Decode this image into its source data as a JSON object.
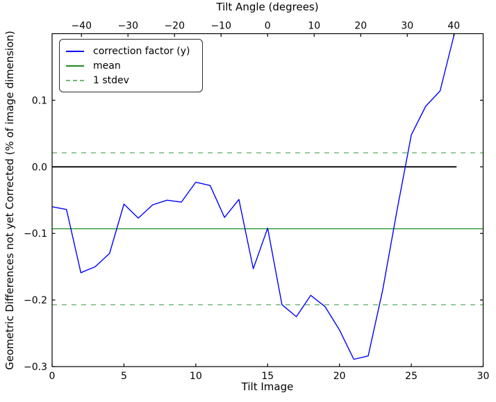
{
  "figure": {
    "background": "#ffffff"
  },
  "chart_data": {
    "type": "line",
    "top_axis": {
      "label": "Tilt Angle (degrees)",
      "tick_values": [
        -40,
        -30,
        -20,
        -10,
        0,
        10,
        20,
        30,
        40
      ],
      "tick_labels": [
        "−40",
        "−30",
        "−20",
        "−10",
        "0",
        "10",
        "20",
        "30",
        "40"
      ],
      "lim": [
        -46.3,
        46.3
      ]
    },
    "xlabel": "Tilt Image",
    "ylabel": "Geometric Differences not yet Corrected (% of image dimension)",
    "xlim": [
      0,
      30
    ],
    "ylim": [
      -0.3,
      0.2
    ],
    "xticks": {
      "values": [
        0,
        5,
        10,
        15,
        20,
        25,
        30
      ],
      "labels": [
        "0",
        "5",
        "10",
        "15",
        "20",
        "25",
        "30"
      ]
    },
    "yticks": {
      "values": [
        0.1,
        0.0,
        -0.1,
        -0.2,
        -0.3
      ],
      "labels": [
        "0.1",
        "0.0",
        "−0.1",
        "−0.2",
        "−0.3"
      ]
    },
    "grid": false,
    "series": [
      {
        "name": "correction factor (y)",
        "x": [
          0,
          1,
          2,
          3,
          4,
          5,
          6,
          7,
          8,
          9,
          10,
          11,
          12,
          13,
          14,
          15,
          16,
          17,
          18,
          19,
          20,
          21,
          22,
          23,
          24,
          25,
          26,
          27,
          28
        ],
        "values": [
          -0.06,
          -0.064,
          -0.159,
          -0.15,
          -0.13,
          -0.056,
          -0.077,
          -0.057,
          -0.05,
          -0.053,
          -0.023,
          -0.028,
          -0.076,
          -0.049,
          -0.153,
          -0.092,
          -0.207,
          -0.225,
          -0.193,
          -0.21,
          -0.245,
          -0.289,
          -0.284,
          -0.186,
          -0.066,
          0.048,
          0.091,
          0.114,
          0.2
        ]
      }
    ],
    "reference_lines": {
      "zero": {
        "value": 0.0,
        "span": [
          0,
          28.15
        ],
        "color": "#000000"
      },
      "mean": {
        "value": -0.093,
        "color": "#008000"
      },
      "stdev_upper": {
        "value": 0.021,
        "color": "#008000"
      },
      "stdev_lower": {
        "value": -0.207,
        "color": "#008000"
      }
    },
    "stdev": 0.114,
    "legend": {
      "position": "upper left",
      "entries": [
        {
          "label": "correction factor (y)",
          "color": "#0000ff",
          "style": "solid",
          "opacity": 1
        },
        {
          "label": "mean",
          "color": "#008000",
          "style": "solid",
          "opacity": 0.9
        },
        {
          "label": "1 stdev",
          "color": "#008000",
          "style": "dashed",
          "opacity": 0.55
        }
      ]
    },
    "colors": {
      "line": "#0000ff",
      "mean": "#008000",
      "stdev": "#008000",
      "zero": "#000000",
      "axes": "#000000"
    }
  }
}
